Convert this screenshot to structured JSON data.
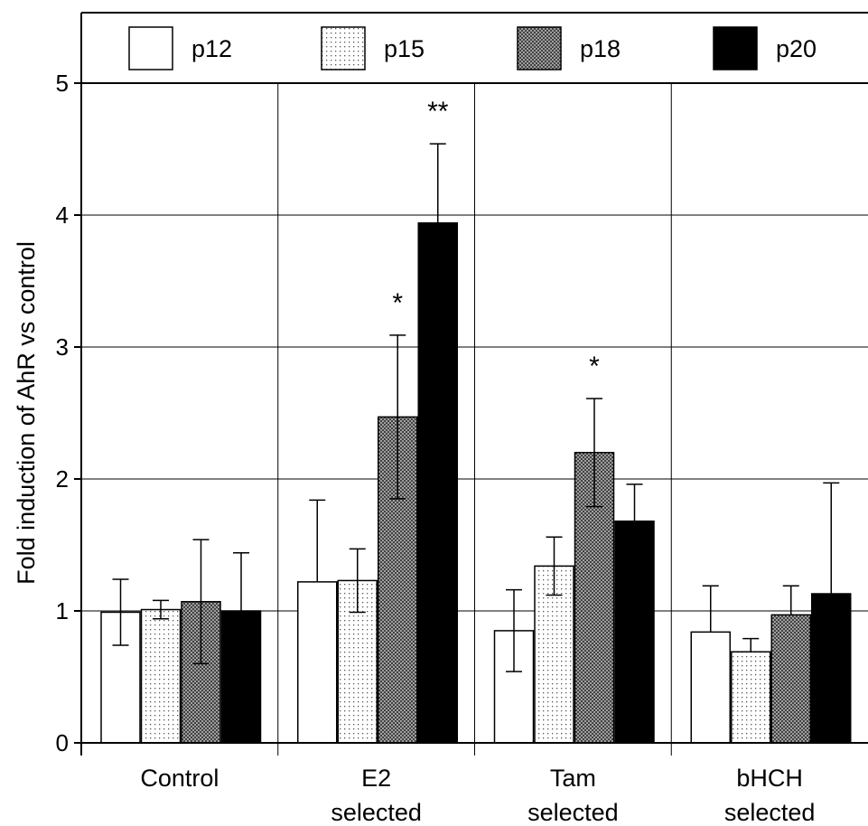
{
  "chart_data": {
    "type": "bar",
    "ylabel": "Fold induction of AhR vs control",
    "xlabel": "",
    "ylim": [
      0,
      5
    ],
    "yticks": [
      0,
      1,
      2,
      3,
      4,
      5
    ],
    "grid": true,
    "legend_position": "top",
    "categories": [
      [
        "Control"
      ],
      [
        "E2",
        "selected"
      ],
      [
        "Tam",
        "selected"
      ],
      [
        "bHCH",
        "selected"
      ]
    ],
    "series": [
      {
        "name": "p12",
        "pattern": "white",
        "values": [
          0.99,
          1.22,
          0.85,
          0.84
        ],
        "errors": [
          0.25,
          0.62,
          0.31,
          0.35
        ]
      },
      {
        "name": "p15",
        "pattern": "light-dots",
        "values": [
          1.01,
          1.23,
          1.34,
          0.69
        ],
        "errors": [
          0.07,
          0.24,
          0.22,
          0.1
        ]
      },
      {
        "name": "p18",
        "pattern": "dense-crosshatch",
        "values": [
          1.07,
          2.47,
          2.2,
          0.97
        ],
        "errors": [
          0.47,
          0.62,
          0.41,
          0.22
        ]
      },
      {
        "name": "p20",
        "pattern": "black",
        "values": [
          1.0,
          3.94,
          1.68,
          1.13
        ],
        "errors": [
          0.44,
          0.6,
          0.28,
          0.84
        ]
      }
    ],
    "error_bars_bidirectional": [
      [
        true,
        false,
        true,
        false
      ],
      [
        true,
        true,
        true,
        false
      ],
      [
        true,
        true,
        true,
        false
      ],
      [
        true,
        true,
        true,
        false
      ]
    ],
    "annotations": [
      {
        "text": "*",
        "category": 1,
        "series": 2
      },
      {
        "text": "**",
        "category": 1,
        "series": 3
      },
      {
        "text": "*",
        "category": 2,
        "series": 2
      }
    ],
    "colors": {
      "p12": "#ffffff",
      "p15": "#f4f4f4",
      "p18": "#9a9a9a",
      "p20": "#000000"
    }
  }
}
